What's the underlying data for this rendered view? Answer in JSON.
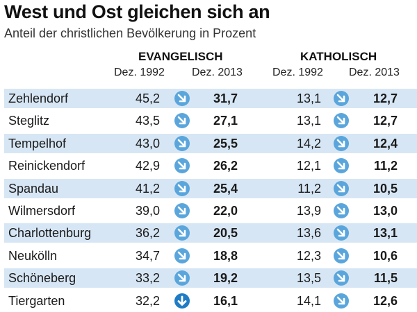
{
  "title": "West und Ost gleichen sich an",
  "subtitle": "Anteil der christlichen Bevölkerung in Prozent",
  "colors": {
    "row_shade": "#d7e6f4",
    "arrow_diag": "#5aa6dc",
    "arrow_down": "#1f7cc4"
  },
  "chart_data": {
    "type": "table",
    "groups": [
      {
        "name": "EVANGELISCH",
        "columns": [
          "Dez. 1992",
          "Dez. 2013"
        ]
      },
      {
        "name": "KATHOLISCH",
        "columns": [
          "Dez. 1992",
          "Dez. 2013"
        ]
      }
    ],
    "rows": [
      {
        "district": "Zehlendorf",
        "ev_1992": "45,2",
        "ev_2013": "31,7",
        "ev_arrow": "down-right-arrow-icon",
        "kat_1992": "13,1",
        "kat_2013": "12,7",
        "kat_arrow": "down-right-arrow-icon"
      },
      {
        "district": "Steglitz",
        "ev_1992": "43,5",
        "ev_2013": "27,1",
        "ev_arrow": "down-right-arrow-icon",
        "kat_1992": "13,1",
        "kat_2013": "12,7",
        "kat_arrow": "down-right-arrow-icon"
      },
      {
        "district": "Tempelhof",
        "ev_1992": "43,0",
        "ev_2013": "25,5",
        "ev_arrow": "down-right-arrow-icon",
        "kat_1992": "14,2",
        "kat_2013": "12,4",
        "kat_arrow": "down-right-arrow-icon"
      },
      {
        "district": "Reinickendorf",
        "ev_1992": "42,9",
        "ev_2013": "26,2",
        "ev_arrow": "down-right-arrow-icon",
        "kat_1992": "12,1",
        "kat_2013": "11,2",
        "kat_arrow": "down-right-arrow-icon"
      },
      {
        "district": "Spandau",
        "ev_1992": "41,2",
        "ev_2013": "25,4",
        "ev_arrow": "down-right-arrow-icon",
        "kat_1992": "11,2",
        "kat_2013": "10,5",
        "kat_arrow": "down-right-arrow-icon"
      },
      {
        "district": "Wilmersdorf",
        "ev_1992": "39,0",
        "ev_2013": "22,0",
        "ev_arrow": "down-right-arrow-icon",
        "kat_1992": "13,9",
        "kat_2013": "13,0",
        "kat_arrow": "down-right-arrow-icon"
      },
      {
        "district": "Charlottenburg",
        "ev_1992": "36,2",
        "ev_2013": "20,5",
        "ev_arrow": "down-right-arrow-icon",
        "kat_1992": "13,6",
        "kat_2013": "13,1",
        "kat_arrow": "down-right-arrow-icon"
      },
      {
        "district": "Neukölln",
        "ev_1992": "34,7",
        "ev_2013": "18,8",
        "ev_arrow": "down-right-arrow-icon",
        "kat_1992": "12,3",
        "kat_2013": "10,6",
        "kat_arrow": "down-right-arrow-icon"
      },
      {
        "district": "Schöneberg",
        "ev_1992": "33,2",
        "ev_2013": "19,2",
        "ev_arrow": "down-right-arrow-icon",
        "kat_1992": "13,5",
        "kat_2013": "11,5",
        "kat_arrow": "down-right-arrow-icon"
      },
      {
        "district": "Tiergarten",
        "ev_1992": "32,2",
        "ev_2013": "16,1",
        "ev_arrow": "down-arrow-icon",
        "kat_1992": "14,1",
        "kat_2013": "12,6",
        "kat_arrow": "down-right-arrow-icon"
      }
    ]
  }
}
